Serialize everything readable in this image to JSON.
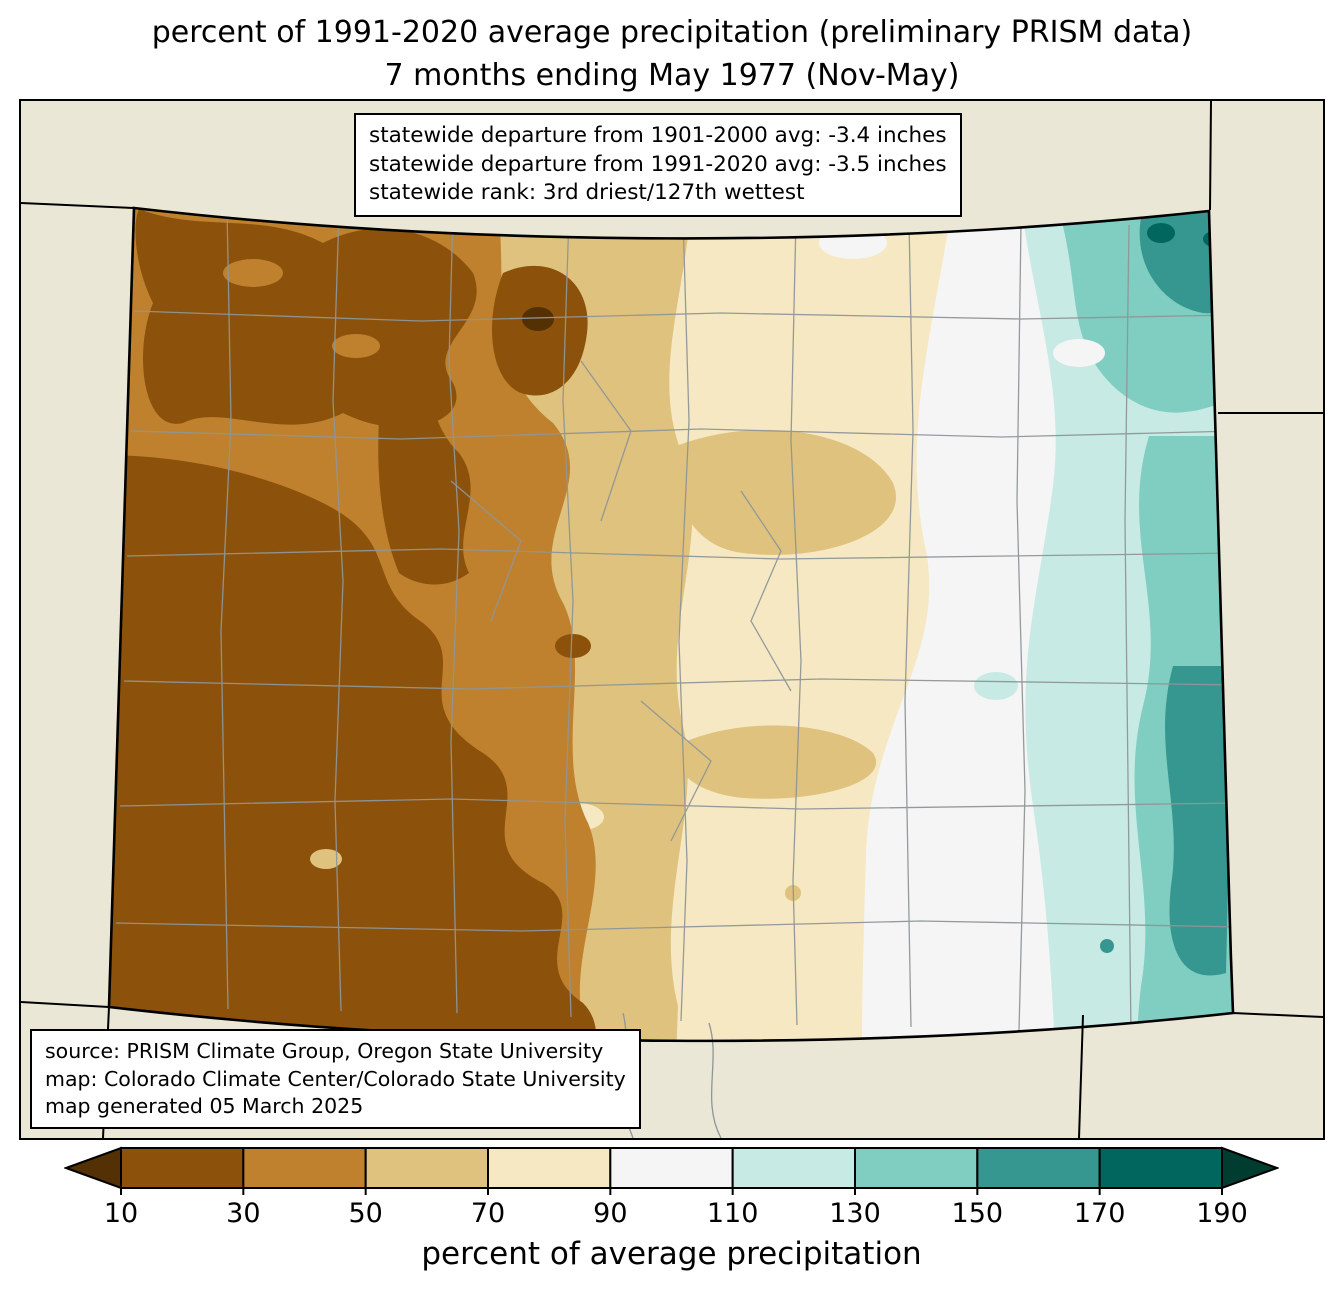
{
  "title": {
    "line1": "percent of 1991-2020 average precipitation (preliminary PRISM data)",
    "line2": "7 months ending May 1977 (Nov-May)"
  },
  "stats_box": {
    "lines": [
      "statewide departure from 1901-2000 avg: -3.4 inches",
      "statewide departure from 1991-2020 avg: -3.5 inches",
      "statewide rank: 3rd driest/127th wettest"
    ]
  },
  "source_box": {
    "lines": [
      "source: PRISM Climate Group, Oregon State University",
      "map: Colorado Climate Center/Colorado State University",
      "map generated 05 March 2025"
    ]
  },
  "colorbar": {
    "label": "percent of average precipitation",
    "tick_labels": [
      "10",
      "30",
      "50",
      "70",
      "90",
      "110",
      "130",
      "150",
      "170",
      "190"
    ],
    "colors": [
      "#543005",
      "#8c510a",
      "#bf812d",
      "#dfc27d",
      "#f6e8c3",
      "#f5f5f5",
      "#c7eae5",
      "#80cdc1",
      "#35978f",
      "#01665e",
      "#003c30"
    ]
  },
  "map": {
    "background": "#eae7d6",
    "county_line_color": "#8f9698",
    "state_border_color": "#000000",
    "palette": {
      "p_lt10": "#543005",
      "p10_30": "#8c510a",
      "p30_50": "#bf812d",
      "p50_70": "#dfc27d",
      "p70_90": "#f6e8c3",
      "p90_110": "#f5f5f5",
      "p110_130": "#c7eae5",
      "p130_150": "#80cdc1",
      "p150_170": "#35978f",
      "p170_190": "#01665e"
    }
  }
}
